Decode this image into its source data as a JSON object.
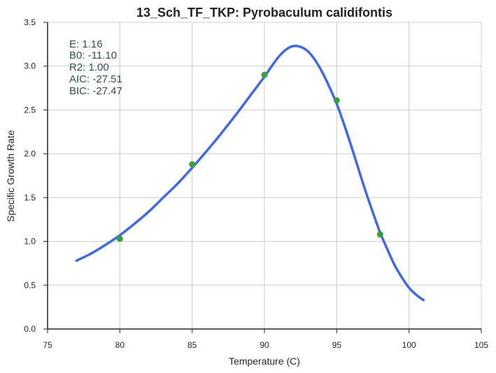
{
  "chart_data": {
    "type": "line",
    "title": "13_Sch_TF_TKP: Pyrobaculum calidifontis",
    "xlabel": "Temperature (C)",
    "ylabel": "Specific Growth Rate",
    "xlim": [
      75,
      105
    ],
    "ylim": [
      0.0,
      3.5
    ],
    "xticks": [
      "75",
      "80",
      "85",
      "90",
      "95",
      "100",
      "105"
    ],
    "yticks": [
      "0.0",
      "0.5",
      "1.0",
      "1.5",
      "2.0",
      "2.5",
      "3.0",
      "3.5"
    ],
    "grid": true,
    "series": [
      {
        "kind": "line",
        "color": "#4169e1",
        "x": [
          77,
          78,
          79,
          80,
          81,
          82,
          83,
          84,
          85,
          86,
          87,
          88,
          89,
          90,
          90.5,
          91,
          91.5,
          92,
          92.5,
          93,
          93.5,
          94,
          94.5,
          95,
          95.5,
          96,
          96.5,
          97,
          97.5,
          98,
          98.5,
          99,
          99.5,
          100,
          100.5,
          101
        ],
        "y": [
          0.78,
          0.86,
          0.96,
          1.07,
          1.2,
          1.34,
          1.5,
          1.66,
          1.84,
          2.03,
          2.23,
          2.44,
          2.66,
          2.88,
          3.0,
          3.11,
          3.19,
          3.23,
          3.22,
          3.17,
          3.07,
          2.93,
          2.76,
          2.57,
          2.34,
          2.09,
          1.83,
          1.57,
          1.33,
          1.1,
          0.91,
          0.73,
          0.59,
          0.47,
          0.39,
          0.33
        ]
      },
      {
        "kind": "scatter",
        "color": "#3a9e3a",
        "x": [
          80,
          85,
          90,
          95,
          98
        ],
        "y": [
          1.03,
          1.88,
          2.9,
          2.61,
          1.08
        ]
      }
    ],
    "annotations": [
      "E:  1.16",
      "B0:  -11.10",
      "R2:  1.00",
      "AIC: -27.51",
      "BIC: -27.47"
    ]
  },
  "colors": {
    "grid": "#cccccc",
    "axis": "#262626",
    "annotation_text": "#2f4f4f"
  }
}
